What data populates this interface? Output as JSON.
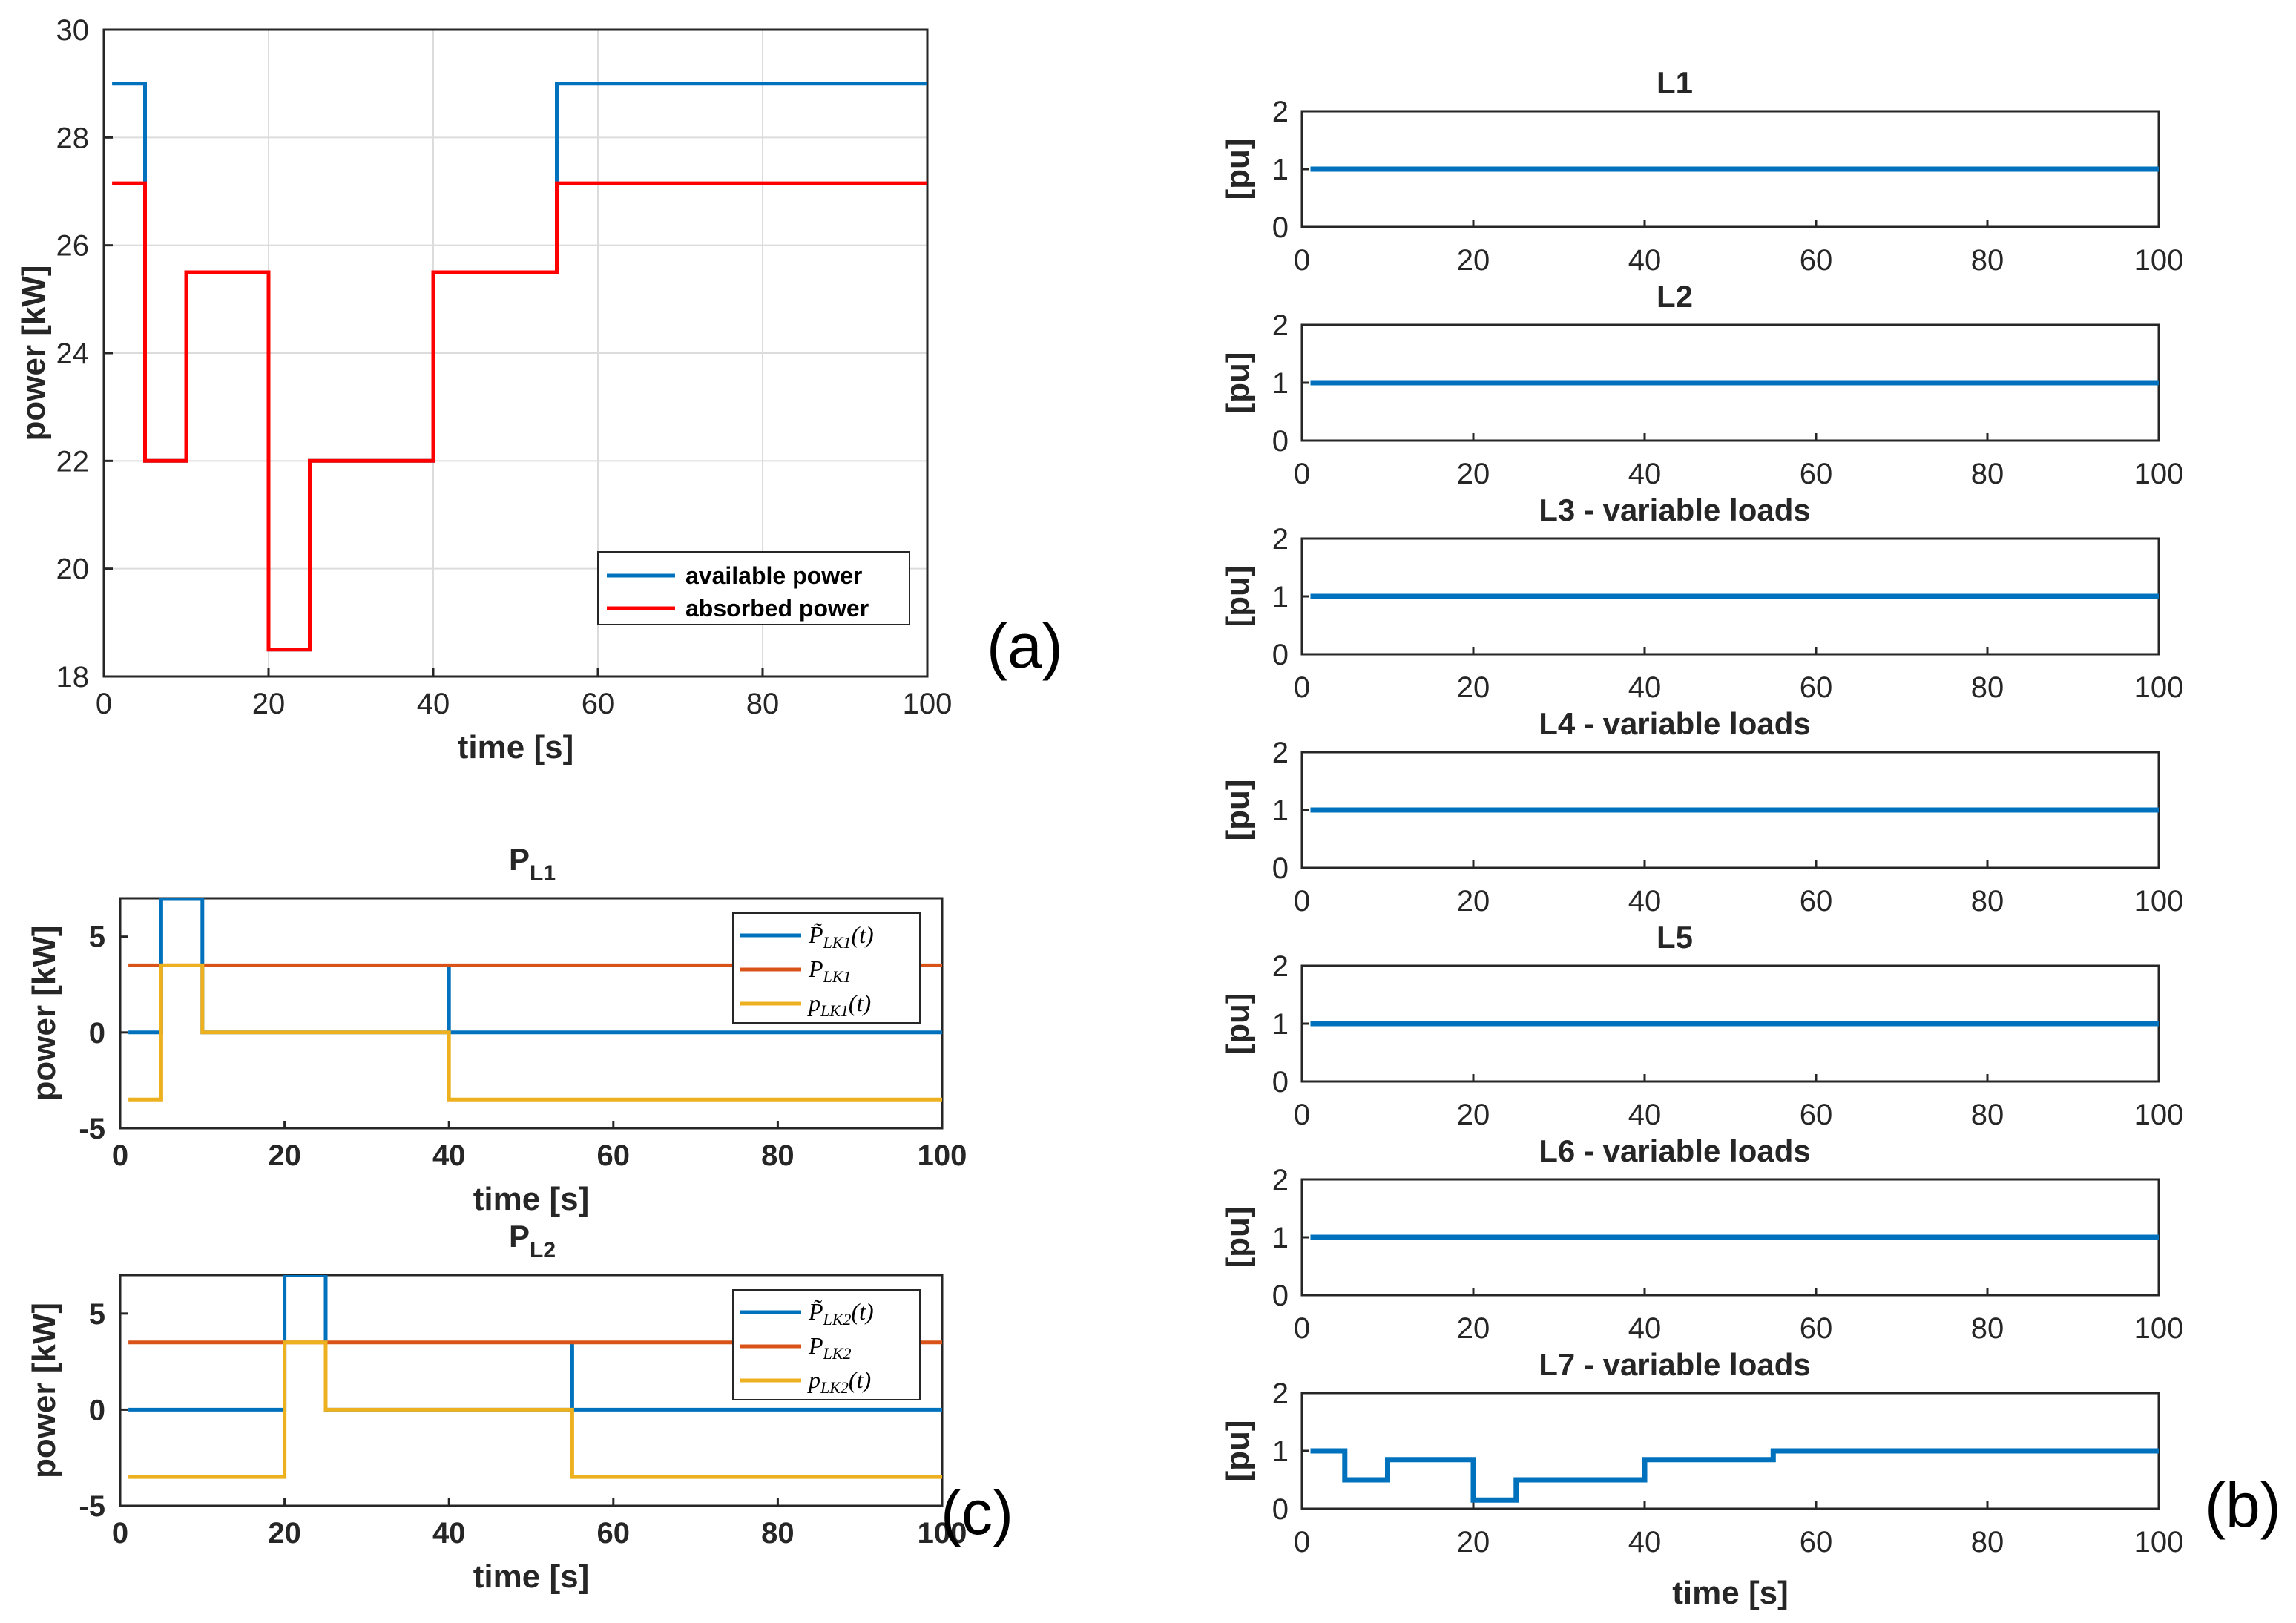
{
  "chart_data": [
    {
      "id": "a",
      "type": "line",
      "panel_label": "(a)",
      "title": "",
      "xlabel": "time [s]",
      "ylabel": "power [kW]",
      "xlim": [
        0,
        100
      ],
      "ylim": [
        18,
        30
      ],
      "xticks": [
        0,
        20,
        40,
        60,
        80,
        100
      ],
      "yticks": [
        18,
        20,
        22,
        24,
        26,
        28,
        30
      ],
      "grid": true,
      "legend_position": "bottom-right",
      "series": [
        {
          "name": "available power",
          "color": "#0072BD",
          "x": [
            1,
            5,
            5,
            10,
            10,
            20,
            20,
            25,
            25,
            40,
            40,
            55,
            55,
            100
          ],
          "y": [
            29,
            29,
            22,
            22,
            25.5,
            25.5,
            18.5,
            18.5,
            22,
            22,
            25.5,
            25.5,
            29,
            29
          ]
        },
        {
          "name": "absorbed power",
          "color": "#FF0000",
          "x": [
            1,
            5,
            5,
            10,
            10,
            20,
            20,
            25,
            25,
            40,
            40,
            55,
            55,
            100
          ],
          "y": [
            27.15,
            27.15,
            22,
            22,
            25.5,
            25.5,
            18.5,
            18.5,
            22,
            22,
            25.5,
            25.5,
            27.15,
            27.15
          ]
        }
      ]
    },
    {
      "id": "c1",
      "type": "line",
      "title_main": "P",
      "title_sub": "L1",
      "xlabel": "time [s]",
      "ylabel": "power [kW]",
      "xlim": [
        0,
        100
      ],
      "ylim": [
        -5,
        7
      ],
      "xticks": [
        0,
        20,
        40,
        60,
        80,
        100
      ],
      "yticks": [
        -5,
        0,
        5
      ],
      "legend_position": "top-right",
      "series": [
        {
          "name_main": "P̃",
          "name_sub": "LK1",
          "name_tail": "(t)",
          "color": "#0072BD",
          "x": [
            1,
            5,
            5,
            10,
            10,
            40,
            40,
            100
          ],
          "y": [
            0,
            0,
            7,
            7,
            0,
            0,
            0,
            0
          ],
          "spike": {
            "x": 40,
            "y": 3.5
          }
        },
        {
          "name_main": "P",
          "name_sub": "LK1",
          "name_tail": "",
          "color": "#D95319",
          "x": [
            1,
            100
          ],
          "y": [
            3.5,
            3.5
          ]
        },
        {
          "name_main": "p",
          "name_sub": "LK1",
          "name_tail": "(t)",
          "color": "#EDB120",
          "x": [
            1,
            5,
            5,
            10,
            10,
            40,
            40,
            100
          ],
          "y": [
            -3.5,
            -3.5,
            3.5,
            3.5,
            0,
            0,
            -3.5,
            -3.5
          ]
        }
      ]
    },
    {
      "id": "c2",
      "type": "line",
      "title_main": "P",
      "title_sub": "L2",
      "xlabel": "time [s]",
      "ylabel": "power [kW]",
      "xlim": [
        0,
        100
      ],
      "ylim": [
        -5,
        7
      ],
      "xticks": [
        0,
        20,
        40,
        60,
        80,
        100
      ],
      "yticks": [
        -5,
        0,
        5
      ],
      "legend_position": "top-right",
      "series": [
        {
          "name_main": "P̃",
          "name_sub": "LK2",
          "name_tail": "(t)",
          "color": "#0072BD",
          "x": [
            1,
            20,
            20,
            25,
            25,
            55,
            55,
            100
          ],
          "y": [
            0,
            0,
            7,
            7,
            0,
            0,
            0,
            0
          ],
          "spike": {
            "x": 55,
            "y": 3.5
          }
        },
        {
          "name_main": "P",
          "name_sub": "LK2",
          "name_tail": "",
          "color": "#D95319",
          "x": [
            1,
            100
          ],
          "y": [
            3.5,
            3.5
          ]
        },
        {
          "name_main": "p",
          "name_sub": "LK2",
          "name_tail": "(t)",
          "color": "#EDB120",
          "x": [
            1,
            20,
            20,
            25,
            25,
            55,
            55,
            100
          ],
          "y": [
            -3.5,
            -3.5,
            3.5,
            3.5,
            0,
            0,
            -3.5,
            -3.5
          ]
        }
      ]
    },
    {
      "id": "b1",
      "type": "line",
      "title": "L1",
      "ylabel": "[pu]",
      "xlim": [
        0,
        100
      ],
      "ylim": [
        0,
        2
      ],
      "xticks": [
        0,
        20,
        40,
        60,
        80,
        100
      ],
      "yticks": [
        0,
        1,
        2
      ],
      "series": [
        {
          "color": "#0072BD",
          "x": [
            1,
            100
          ],
          "y": [
            1,
            1
          ]
        }
      ]
    },
    {
      "id": "b2",
      "type": "line",
      "title": "L2",
      "ylabel": "[pu]",
      "xlim": [
        0,
        100
      ],
      "ylim": [
        0,
        2
      ],
      "xticks": [
        0,
        20,
        40,
        60,
        80,
        100
      ],
      "yticks": [
        0,
        1,
        2
      ],
      "series": [
        {
          "color": "#0072BD",
          "x": [
            1,
            100
          ],
          "y": [
            1,
            1
          ]
        }
      ]
    },
    {
      "id": "b3",
      "type": "line",
      "title": "L3 - variable loads",
      "ylabel": "[pu]",
      "xlim": [
        0,
        100
      ],
      "ylim": [
        0,
        2
      ],
      "xticks": [
        0,
        20,
        40,
        60,
        80,
        100
      ],
      "yticks": [
        0,
        1,
        2
      ],
      "series": [
        {
          "color": "#0072BD",
          "x": [
            1,
            100
          ],
          "y": [
            1,
            1
          ]
        }
      ]
    },
    {
      "id": "b4",
      "type": "line",
      "title": "L4 - variable loads",
      "ylabel": "[pu]",
      "xlim": [
        0,
        100
      ],
      "ylim": [
        0,
        2
      ],
      "xticks": [
        0,
        20,
        40,
        60,
        80,
        100
      ],
      "yticks": [
        0,
        1,
        2
      ],
      "series": [
        {
          "color": "#0072BD",
          "x": [
            1,
            100
          ],
          "y": [
            1,
            1
          ]
        }
      ]
    },
    {
      "id": "b5",
      "type": "line",
      "title": "L5",
      "ylabel": "[pu]",
      "xlim": [
        0,
        100
      ],
      "ylim": [
        0,
        2
      ],
      "xticks": [
        0,
        20,
        40,
        60,
        80,
        100
      ],
      "yticks": [
        0,
        1,
        2
      ],
      "series": [
        {
          "color": "#0072BD",
          "x": [
            1,
            100
          ],
          "y": [
            1,
            1
          ]
        }
      ]
    },
    {
      "id": "b6",
      "type": "line",
      "title": "L6 - variable loads",
      "ylabel": "[pu]",
      "xlim": [
        0,
        100
      ],
      "ylim": [
        0,
        2
      ],
      "xticks": [
        0,
        20,
        40,
        60,
        80,
        100
      ],
      "yticks": [
        0,
        1,
        2
      ],
      "series": [
        {
          "color": "#0072BD",
          "x": [
            1,
            100
          ],
          "y": [
            1,
            1
          ]
        }
      ]
    },
    {
      "id": "b7",
      "type": "line",
      "title": "L7 - variable loads",
      "ylabel": "[pu]",
      "xlabel": "time [s]",
      "xlim": [
        0,
        100
      ],
      "ylim": [
        0,
        2
      ],
      "xticks": [
        0,
        20,
        40,
        60,
        80,
        100
      ],
      "yticks": [
        0,
        1,
        2
      ],
      "series": [
        {
          "color": "#0072BD",
          "x": [
            1,
            5,
            5,
            10,
            10,
            20,
            20,
            25,
            25,
            40,
            40,
            55,
            55,
            100
          ],
          "y": [
            1,
            1,
            0.5,
            0.5,
            0.85,
            0.85,
            0.15,
            0.15,
            0.5,
            0.5,
            0.85,
            0.85,
            1,
            1
          ]
        }
      ]
    }
  ],
  "panel_labels": {
    "a": "(a)",
    "b": "(b)",
    "c": "(c)"
  }
}
